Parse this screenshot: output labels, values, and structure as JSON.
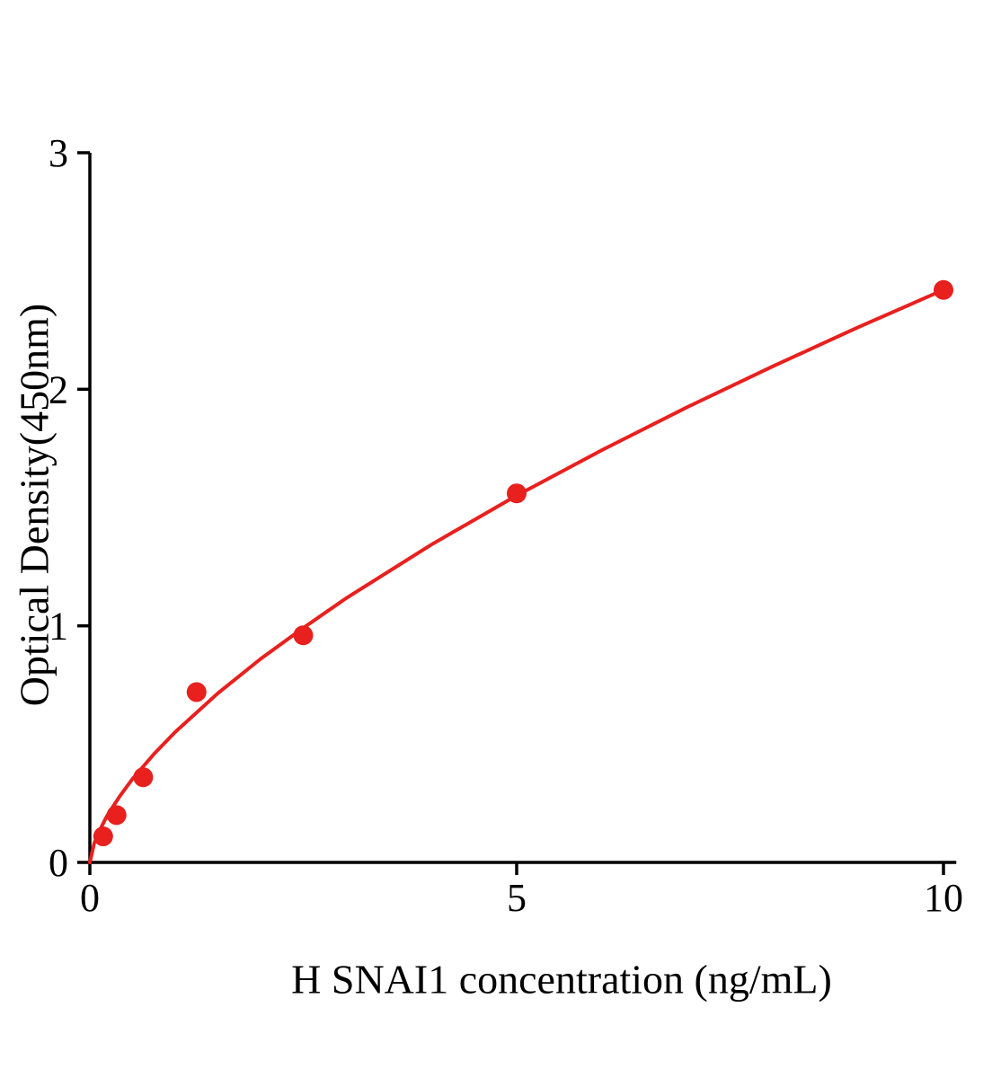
{
  "chart_data": {
    "type": "scatter",
    "title": "",
    "xlabel": "H SNAI1 concentration (ng/mL)",
    "ylabel": "Optical Density(450nm)",
    "x_ticks": [
      0,
      5,
      10
    ],
    "y_ticks": [
      0,
      1,
      2,
      3
    ],
    "xlim": [
      0,
      10.15
    ],
    "ylim": [
      0,
      3
    ],
    "grid": false,
    "legend": "none",
    "point_color": "#e8201e",
    "curve_color": "#e8201e",
    "axis_color": "#000000",
    "points": [
      {
        "x": 0.156,
        "y": 0.11
      },
      {
        "x": 0.3125,
        "y": 0.2
      },
      {
        "x": 0.625,
        "y": 0.36
      },
      {
        "x": 1.25,
        "y": 0.72
      },
      {
        "x": 2.5,
        "y": 0.96
      },
      {
        "x": 5,
        "y": 1.56
      },
      {
        "x": 10,
        "y": 2.42
      }
    ],
    "curve": [
      [
        0,
        0
      ],
      [
        0.05,
        0.08
      ],
      [
        0.1,
        0.125
      ],
      [
        0.2,
        0.196
      ],
      [
        0.35,
        0.28
      ],
      [
        0.5,
        0.353
      ],
      [
        0.75,
        0.458
      ],
      [
        1,
        0.551
      ],
      [
        1.5,
        0.715
      ],
      [
        2,
        0.86
      ],
      [
        2.5,
        0.991
      ],
      [
        3,
        1.116
      ],
      [
        4,
        1.343
      ],
      [
        5,
        1.551
      ],
      [
        6,
        1.743
      ],
      [
        7,
        1.925
      ],
      [
        8,
        2.097
      ],
      [
        9,
        2.262
      ],
      [
        10,
        2.42
      ]
    ]
  }
}
